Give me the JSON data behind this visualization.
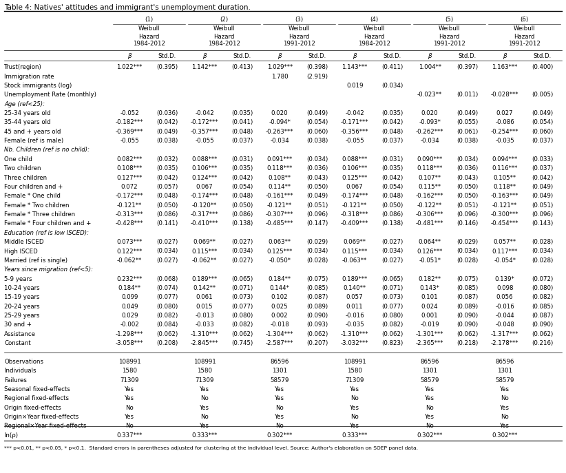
{
  "title": "Table 4: Natives' attitudes and immigrant's unemployment duration.",
  "col_headers_line1": [
    "(1)",
    "(2)",
    "(3)",
    "(4)",
    "(5)",
    "(6)"
  ],
  "col_headers_line2": [
    "Weibull",
    "Weibull",
    "Weibull",
    "Weibull",
    "Weibull",
    "Weibull"
  ],
  "col_headers_line3": [
    "Hazard",
    "Hazard",
    "Hazard",
    "Hazard",
    "Hazard",
    "Hazard"
  ],
  "col_headers_line4": [
    "1984-2012",
    "1984-2012",
    "1991-2012",
    "1984-2012",
    "1991-2012",
    "1991-2012"
  ],
  "col_headers_line5_beta": [
    "β",
    "β",
    "β",
    "β",
    "β",
    "β"
  ],
  "col_headers_line5_std": [
    "Std.D.",
    "Std.D.",
    "Std.D.",
    "Std.D.",
    "Std.D.",
    "Std.D."
  ],
  "rows": [
    [
      "Trust(region)",
      "1.022***",
      "(0.395)",
      "1.142***",
      "(0.413)",
      "1.029***",
      "(0.398)",
      "1.143***",
      "(0.411)",
      "1.004**",
      "(0.397)",
      "1.163***",
      "(0.400)"
    ],
    [
      "Immigration rate",
      "",
      "",
      "",
      "",
      "1.780",
      "(2.919)",
      "",
      "",
      "",
      "",
      "",
      ""
    ],
    [
      "Stock immigrants (log)",
      "",
      "",
      "",
      "",
      "",
      "",
      "0.019",
      "(0.034)",
      "",
      "",
      "",
      ""
    ],
    [
      "Unemployment Rate (monthly)",
      "",
      "",
      "",
      "",
      "",
      "",
      "",
      "",
      "-0.023**",
      "(0.011)",
      "-0.028***",
      "(0.005)"
    ],
    [
      "Age (ref<25):",
      "",
      "",
      "",
      "",
      "",
      "",
      "",
      "",
      "",
      "",
      "",
      ""
    ],
    [
      "25-34 years old",
      "-0.052",
      "(0.036)",
      "-0.042",
      "(0.035)",
      "0.020",
      "(0.049)",
      "-0.042",
      "(0.035)",
      "0.020",
      "(0.049)",
      "0.027",
      "(0.049)"
    ],
    [
      "35-44 years old",
      "-0.182***",
      "(0.042)",
      "-0.172***",
      "(0.041)",
      "-0.094*",
      "(0.054)",
      "-0.171***",
      "(0.042)",
      "-0.093*",
      "(0.055)",
      "-0.086",
      "(0.054)"
    ],
    [
      "45 and + years old",
      "-0.369***",
      "(0.049)",
      "-0.357***",
      "(0.048)",
      "-0.263***",
      "(0.060)",
      "-0.356***",
      "(0.048)",
      "-0.262***",
      "(0.061)",
      "-0.254***",
      "(0.060)"
    ],
    [
      "Female (ref is male)",
      "-0.055",
      "(0.038)",
      "-0.055",
      "(0.037)",
      "-0.034",
      "(0.038)",
      "-0.055",
      "(0.037)",
      "-0.034",
      "(0.038)",
      "-0.035",
      "(0.037)"
    ],
    [
      "Nb. Children (ref is no child):",
      "",
      "",
      "",
      "",
      "",
      "",
      "",
      "",
      "",
      "",
      "",
      ""
    ],
    [
      "One child",
      "0.082***",
      "(0.032)",
      "0.088***",
      "(0.031)",
      "0.091***",
      "(0.034)",
      "0.088***",
      "(0.031)",
      "0.090***",
      "(0.034)",
      "0.094***",
      "(0.033)"
    ],
    [
      "Two children",
      "0.108***",
      "(0.035)",
      "0.106***",
      "(0.035)",
      "0.118***",
      "(0.036)",
      "0.106***",
      "(0.035)",
      "0.118***",
      "(0.036)",
      "0.116***",
      "(0.037)"
    ],
    [
      "Three children",
      "0.127***",
      "(0.042)",
      "0.124***",
      "(0.042)",
      "0.108**",
      "(0.043)",
      "0.125***",
      "(0.042)",
      "0.107**",
      "(0.043)",
      "0.105**",
      "(0.042)"
    ],
    [
      "Four children and +",
      "0.072",
      "(0.057)",
      "0.067",
      "(0.054)",
      "0.114**",
      "(0.050)",
      "0.067",
      "(0.054)",
      "0.115**",
      "(0.050)",
      "0.118**",
      "(0.049)"
    ],
    [
      "Female * One child",
      "-0.172***",
      "(0.048)",
      "-0.174***",
      "(0.048)",
      "-0.161***",
      "(0.049)",
      "-0.174***",
      "(0.048)",
      "-0.162***",
      "(0.050)",
      "-0.163***",
      "(0.049)"
    ],
    [
      "Female * Two children",
      "-0.121**",
      "(0.050)",
      "-0.120**",
      "(0.050)",
      "-0.121**",
      "(0.051)",
      "-0.121**",
      "(0.050)",
      "-0.122**",
      "(0.051)",
      "-0.121**",
      "(0.051)"
    ],
    [
      "Female * Three children",
      "-0.313***",
      "(0.086)",
      "-0.317***",
      "(0.086)",
      "-0.307***",
      "(0.096)",
      "-0.318***",
      "(0.086)",
      "-0.306***",
      "(0.096)",
      "-0.300***",
      "(0.096)"
    ],
    [
      "Female * Four children and +",
      "-0.428***",
      "(0.141)",
      "-0.410***",
      "(0.138)",
      "-0.485***",
      "(0.147)",
      "-0.409***",
      "(0.138)",
      "-0.481***",
      "(0.146)",
      "-0.454***",
      "(0.143)"
    ],
    [
      "Education (ref is low ISCED):",
      "",
      "",
      "",
      "",
      "",
      "",
      "",
      "",
      "",
      "",
      "",
      ""
    ],
    [
      "Middle ISCED",
      "0.073***",
      "(0.027)",
      "0.069**",
      "(0.027)",
      "0.063**",
      "(0.029)",
      "0.069**",
      "(0.027)",
      "0.064**",
      "(0.029)",
      "0.057**",
      "(0.028)"
    ],
    [
      "High ISCED",
      "0.122***",
      "(0.034)",
      "0.115***",
      "(0.034)",
      "0.125***",
      "(0.034)",
      "0.115***",
      "(0.034)",
      "0.126***",
      "(0.034)",
      "0.117***",
      "(0.034)"
    ],
    [
      "Married (ref is single)",
      "-0.062**",
      "(0.027)",
      "-0.062**",
      "(0.027)",
      "-0.050*",
      "(0.028)",
      "-0.063**",
      "(0.027)",
      "-0.051*",
      "(0.028)",
      "-0.054*",
      "(0.028)"
    ],
    [
      "Years since migration (ref<5):",
      "",
      "",
      "",
      "",
      "",
      "",
      "",
      "",
      "",
      "",
      "",
      ""
    ],
    [
      "5-9 years",
      "0.232***",
      "(0.068)",
      "0.189***",
      "(0.065)",
      "0.184**",
      "(0.075)",
      "0.189***",
      "(0.065)",
      "0.182**",
      "(0.075)",
      "0.139*",
      "(0.072)"
    ],
    [
      "10-24 years",
      "0.184**",
      "(0.074)",
      "0.142**",
      "(0.071)",
      "0.144*",
      "(0.085)",
      "0.140**",
      "(0.071)",
      "0.143*",
      "(0.085)",
      "0.098",
      "(0.080)"
    ],
    [
      "15-19 years",
      "0.099",
      "(0.077)",
      "0.061",
      "(0.073)",
      "0.102",
      "(0.087)",
      "0.057",
      "(0.073)",
      "0.101",
      "(0.087)",
      "0.056",
      "(0.082)"
    ],
    [
      "20-24 years",
      "0.049",
      "(0.080)",
      "0.015",
      "(0.077)",
      "0.025",
      "(0.089)",
      "0.011",
      "(0.077)",
      "0.024",
      "(0.089)",
      "-0.016",
      "(0.085)"
    ],
    [
      "25-29 years",
      "0.029",
      "(0.082)",
      "-0.013",
      "(0.080)",
      "0.002",
      "(0.090)",
      "-0.016",
      "(0.080)",
      "0.001",
      "(0.090)",
      "-0.044",
      "(0.087)"
    ],
    [
      "30 and +",
      "-0.002",
      "(0.084)",
      "-0.033",
      "(0.082)",
      "-0.018",
      "(0.093)",
      "-0.035",
      "(0.082)",
      "-0.019",
      "(0.090)",
      "-0.048",
      "(0.090)"
    ],
    [
      "Assistance",
      "-1.298***",
      "(0.062)",
      "-1.310***",
      "(0.062)",
      "-1.304***",
      "(0.062)",
      "-1.310***",
      "(0.062)",
      "-1.301***",
      "(0.062)",
      "-1.317***",
      "(0.062)"
    ],
    [
      "Constant",
      "-3.058***",
      "(0.208)",
      "-2.845***",
      "(0.745)",
      "-2.587***",
      "(0.207)",
      "-3.032***",
      "(0.823)",
      "-2.365***",
      "(0.218)",
      "-2.178***",
      "(0.216)"
    ],
    [
      "",
      "",
      "",
      "",
      "",
      "",
      "",
      "",
      "",
      "",
      "",
      "",
      ""
    ],
    [
      "Observations",
      "108991",
      "",
      "108991",
      "",
      "86596",
      "",
      "108991",
      "",
      "86596",
      "",
      "86596",
      ""
    ],
    [
      "Individuals",
      "1580",
      "",
      "1580",
      "",
      "1301",
      "",
      "1580",
      "",
      "1301",
      "",
      "1301",
      ""
    ],
    [
      "Failures",
      "71309",
      "",
      "71309",
      "",
      "58579",
      "",
      "71309",
      "",
      "58579",
      "",
      "58579",
      ""
    ],
    [
      "Seasonal fixed-effects",
      "Yes",
      "",
      "Yes",
      "",
      "Yes",
      "",
      "Yes",
      "",
      "Yes",
      "",
      "Yes",
      ""
    ],
    [
      "Regional fixed-effects",
      "Yes",
      "",
      "No",
      "",
      "Yes",
      "",
      "No",
      "",
      "Yes",
      "",
      "No",
      ""
    ],
    [
      "Origin fixed-effects",
      "No",
      "",
      "Yes",
      "",
      "No",
      "",
      "Yes",
      "",
      "No",
      "",
      "Yes",
      ""
    ],
    [
      "Origin×Year fixed-effects",
      "Yes",
      "",
      "No",
      "",
      "Yes",
      "",
      "No",
      "",
      "Yes",
      "",
      "No",
      ""
    ],
    [
      "Regional×Year fixed-effects",
      "No",
      "",
      "Yes",
      "",
      "No",
      "",
      "Yes",
      "",
      "No",
      "",
      "Yes",
      ""
    ],
    [
      "ln(ρ)",
      "0.337***",
      "",
      "0.333***",
      "",
      "0.302***",
      "",
      "0.333***",
      "",
      "0.302***",
      "",
      "0.302***",
      ""
    ]
  ],
  "italic_row_indices": [
    4,
    9,
    18,
    22
  ],
  "footnote": "*** p<0.01, ** p<0.05, * p<0.1.  Standard errors in parentheses adjusted for clustering at the individual level. Source: Author's elaboration on SOEP panel data.",
  "background_color": "#ffffff",
  "font_size": 6.2,
  "title_font_size": 7.5
}
